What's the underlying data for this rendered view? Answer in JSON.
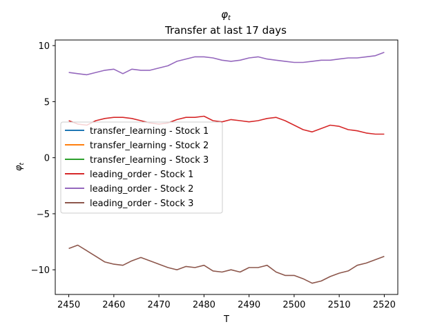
{
  "chart_data": {
    "type": "line",
    "title_symbol": "φ",
    "title_subscript": "t",
    "title_line2": "Transfer at last 17 days",
    "xlabel": "T",
    "ylabel_symbol": "φ",
    "ylabel_subscript": "t",
    "xlim": [
      2447,
      2523
    ],
    "ylim": [
      -12.2,
      10.5
    ],
    "xticks": [
      2450,
      2460,
      2470,
      2480,
      2490,
      2500,
      2510,
      2520
    ],
    "yticks": [
      -10,
      -5,
      0,
      5,
      10
    ],
    "ytick_labels": [
      "−10",
      "−5",
      "0",
      "5",
      "10"
    ],
    "grid": false,
    "legend_position": "center-left",
    "series": [
      {
        "name": "transfer_learning - Stock 1",
        "color": "#1f77b4",
        "x": [],
        "y": []
      },
      {
        "name": "transfer_learning - Stock 2",
        "color": "#ff7f0e",
        "x": [],
        "y": []
      },
      {
        "name": "transfer_learning - Stock 3",
        "color": "#2ca02c",
        "x": [],
        "y": []
      },
      {
        "name": "leading_order - Stock 1",
        "color": "#d62728",
        "x": [
          2450,
          2452,
          2454,
          2456,
          2458,
          2460,
          2462,
          2464,
          2466,
          2468,
          2470,
          2472,
          2474,
          2476,
          2478,
          2480,
          2482,
          2484,
          2486,
          2488,
          2490,
          2492,
          2494,
          2496,
          2498,
          2500,
          2502,
          2504,
          2506,
          2508,
          2510,
          2512,
          2514,
          2516,
          2518,
          2520
        ],
        "y": [
          3.3,
          3.0,
          2.9,
          3.3,
          3.5,
          3.6,
          3.6,
          3.5,
          3.3,
          3.1,
          3.0,
          3.1,
          3.4,
          3.6,
          3.6,
          3.7,
          3.3,
          3.2,
          3.4,
          3.3,
          3.2,
          3.3,
          3.5,
          3.6,
          3.3,
          2.9,
          2.5,
          2.3,
          2.6,
          2.9,
          2.8,
          2.5,
          2.4,
          2.2,
          2.1,
          2.1
        ]
      },
      {
        "name": "leading_order - Stock 2",
        "color": "#9467bd",
        "x": [
          2450,
          2452,
          2454,
          2456,
          2458,
          2460,
          2462,
          2464,
          2466,
          2468,
          2470,
          2472,
          2474,
          2476,
          2478,
          2480,
          2482,
          2484,
          2486,
          2488,
          2490,
          2492,
          2494,
          2496,
          2498,
          2500,
          2502,
          2504,
          2506,
          2508,
          2510,
          2512,
          2514,
          2516,
          2518,
          2520
        ],
        "y": [
          7.6,
          7.5,
          7.4,
          7.6,
          7.8,
          7.9,
          7.5,
          7.9,
          7.8,
          7.8,
          8.0,
          8.2,
          8.6,
          8.8,
          9.0,
          9.0,
          8.9,
          8.7,
          8.6,
          8.7,
          8.9,
          9.0,
          8.8,
          8.7,
          8.6,
          8.5,
          8.5,
          8.6,
          8.7,
          8.7,
          8.8,
          8.9,
          8.9,
          9.0,
          9.1,
          9.4
        ]
      },
      {
        "name": "leading_order - Stock 3",
        "color": "#8c564b",
        "x": [
          2450,
          2452,
          2454,
          2456,
          2458,
          2460,
          2462,
          2464,
          2466,
          2468,
          2470,
          2472,
          2474,
          2476,
          2478,
          2480,
          2482,
          2484,
          2486,
          2488,
          2490,
          2492,
          2494,
          2496,
          2498,
          2500,
          2502,
          2504,
          2506,
          2508,
          2510,
          2512,
          2514,
          2516,
          2518,
          2520
        ],
        "y": [
          -8.1,
          -7.8,
          -8.3,
          -8.8,
          -9.3,
          -9.5,
          -9.6,
          -9.2,
          -8.9,
          -9.2,
          -9.5,
          -9.8,
          -10.0,
          -9.7,
          -9.8,
          -9.6,
          -10.1,
          -10.2,
          -10.0,
          -10.2,
          -9.8,
          -9.8,
          -9.6,
          -10.2,
          -10.5,
          -10.5,
          -10.8,
          -11.2,
          -11.0,
          -10.6,
          -10.3,
          -10.1,
          -9.6,
          -9.4,
          -9.1,
          -8.8
        ]
      }
    ]
  }
}
